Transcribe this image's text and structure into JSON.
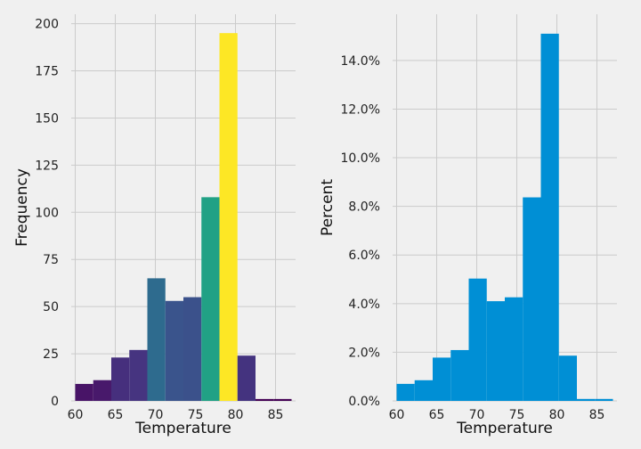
{
  "chart_data": [
    {
      "type": "bar",
      "xlabel": "Temperature",
      "ylabel": "Frequency",
      "xlim": [
        59.5,
        87.5
      ],
      "ylim": [
        0,
        205
      ],
      "xticks": [
        60,
        65,
        70,
        75,
        80,
        85
      ],
      "yticks": [
        0,
        25,
        50,
        75,
        100,
        125,
        150,
        175,
        200
      ],
      "bin_edges": [
        60,
        62.25,
        64.5,
        66.75,
        69,
        71.25,
        73.5,
        75.75,
        78,
        80.25,
        82.5,
        84.75,
        87
      ],
      "values": [
        9,
        11,
        23,
        27,
        65,
        53,
        55,
        108,
        195,
        24,
        1,
        1
      ],
      "colors": [
        "#481467",
        "#48196b",
        "#462f7d",
        "#463480",
        "#2e6b8e",
        "#3a548c",
        "#3b518b",
        "#21a185",
        "#fde725",
        "#44337f",
        "#440154",
        "#440154"
      ],
      "grid": true
    },
    {
      "type": "bar",
      "xlabel": "Temperature",
      "ylabel": "Percent",
      "xlim": [
        59.5,
        87.5
      ],
      "ylim": [
        0,
        15.9
      ],
      "xticks": [
        60,
        65,
        70,
        75,
        80,
        85
      ],
      "yticks": [
        0,
        2,
        4,
        6,
        8,
        10,
        12,
        14
      ],
      "ytick_labels": [
        "0.0%",
        "2.0%",
        "4.0%",
        "6.0%",
        "8.0%",
        "10.0%",
        "12.0%",
        "14.0%"
      ],
      "bin_edges": [
        60,
        62.25,
        64.5,
        66.75,
        69,
        71.25,
        73.5,
        75.75,
        78,
        80.25,
        82.5,
        84.75,
        87
      ],
      "values": [
        0.7,
        0.85,
        1.78,
        2.09,
        5.03,
        4.1,
        4.26,
        8.37,
        15.1,
        1.86,
        0.08,
        0.08
      ],
      "color": "#008fd5",
      "grid": true
    }
  ]
}
